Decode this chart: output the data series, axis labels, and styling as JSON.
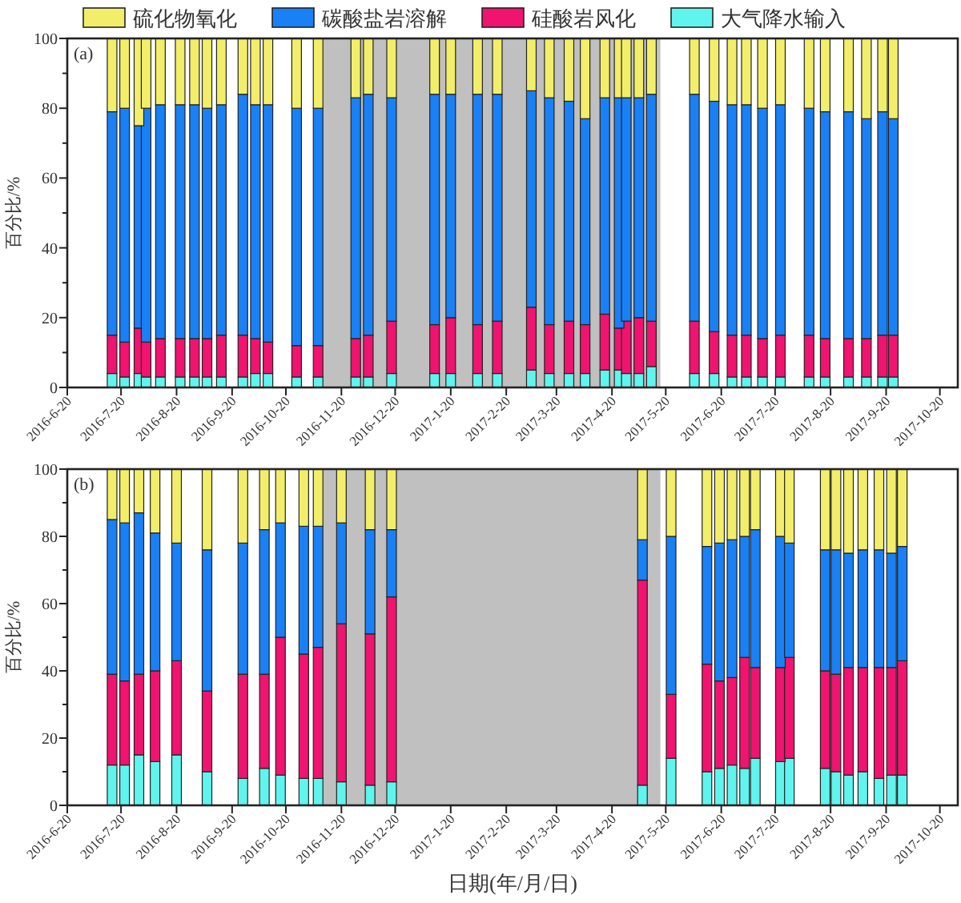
{
  "chart_data": [
    {
      "type": "bar",
      "title": "(a)",
      "ylabel": "百分比/%",
      "stacked": true,
      "legend": "top",
      "x": [
        "2016-07-15",
        "2016-07-22",
        "2016-07-30",
        "2016-08-03",
        "2016-08-11",
        "2016-08-22",
        "2016-08-30",
        "2016-09-06",
        "2016-09-14",
        "2016-09-26",
        "2016-10-03",
        "2016-10-10",
        "2016-10-26",
        "2016-11-07",
        "2016-11-28",
        "2016-12-05",
        "2016-12-18",
        "2017-01-11",
        "2017-01-20",
        "2017-02-04",
        "2017-02-15",
        "2017-03-06",
        "2017-03-16",
        "2017-03-27",
        "2017-04-05",
        "2017-04-16",
        "2017-04-24",
        "2017-04-28",
        "2017-05-05",
        "2017-05-12",
        "2017-06-05",
        "2017-06-16",
        "2017-06-26",
        "2017-07-04",
        "2017-07-13",
        "2017-07-23",
        "2017-08-08",
        "2017-08-17",
        "2017-08-30",
        "2017-09-09",
        "2017-09-18",
        "2017-09-24"
      ],
      "series": [
        {
          "name": "大气降水输入",
          "color": "#5ff5ee",
          "values": [
            4,
            3,
            4,
            3,
            3,
            3,
            3,
            3,
            3,
            3,
            4,
            4,
            3,
            3,
            3,
            3,
            4,
            4,
            4,
            4,
            4,
            5,
            4,
            4,
            4,
            5,
            5,
            4,
            4,
            6,
            4,
            4,
            3,
            3,
            3,
            3,
            3,
            3,
            3,
            3,
            3,
            3
          ]
        },
        {
          "name": "硅酸岩风化",
          "color": "#f0136f",
          "values": [
            11,
            10,
            13,
            10,
            11,
            11,
            11,
            11,
            12,
            12,
            10,
            9,
            9,
            9,
            11,
            12,
            15,
            14,
            16,
            14,
            15,
            18,
            14,
            15,
            14,
            16,
            12,
            15,
            16,
            13,
            15,
            12,
            12,
            12,
            11,
            12,
            12,
            11,
            11,
            11,
            12,
            12
          ]
        },
        {
          "name": "碳酸盐岩溶解",
          "color": "#1a80f5",
          "values": [
            64,
            67,
            58,
            67,
            67,
            67,
            67,
            66,
            66,
            69,
            67,
            68,
            68,
            68,
            69,
            69,
            64,
            66,
            64,
            66,
            65,
            62,
            65,
            63,
            59,
            62,
            66,
            64,
            63,
            65,
            65,
            66,
            66,
            66,
            66,
            66,
            65,
            65,
            65,
            63,
            64,
            62
          ]
        },
        {
          "name": "硫化物氧化",
          "color": "#f3ee6a",
          "values": [
            21,
            20,
            25,
            20,
            19,
            19,
            19,
            20,
            19,
            16,
            19,
            19,
            20,
            20,
            17,
            16,
            17,
            16,
            16,
            16,
            16,
            15,
            17,
            18,
            23,
            17,
            17,
            17,
            17,
            16,
            16,
            18,
            19,
            19,
            20,
            19,
            20,
            21,
            21,
            23,
            21,
            23
          ]
        }
      ],
      "xlim": [
        "2016-06-20",
        "2017-10-30"
      ],
      "xticks": [
        {
          "value": "2016-06-20",
          "label": "2016-6-20"
        },
        {
          "value": "2016-07-20",
          "label": "2016-7-20"
        },
        {
          "value": "2016-08-20",
          "label": "2016-8-20"
        },
        {
          "value": "2016-09-20",
          "label": "2016-9-20"
        },
        {
          "value": "2016-10-20",
          "label": "2016-10-20"
        },
        {
          "value": "2016-11-20",
          "label": "2016-11-20"
        },
        {
          "value": "2016-12-20",
          "label": "2016-12-20"
        },
        {
          "value": "2017-01-20",
          "label": "2017-1-20"
        },
        {
          "value": "2017-02-20",
          "label": "2017-2-20"
        },
        {
          "value": "2017-03-20",
          "label": "2017-3-20"
        },
        {
          "value": "2017-04-20",
          "label": "2017-4-20"
        },
        {
          "value": "2017-05-20",
          "label": "2017-5-20"
        },
        {
          "value": "2017-06-20",
          "label": "2017-6-20"
        },
        {
          "value": "2017-07-20",
          "label": "2017-7-20"
        },
        {
          "value": "2017-08-20",
          "label": "2017-8-20"
        },
        {
          "value": "2017-09-20",
          "label": "2017-9-20"
        },
        {
          "value": "2017-10-20",
          "label": "2017-10-20"
        }
      ],
      "ylim": [
        0,
        100
      ],
      "yticks": [
        0,
        20,
        40,
        60,
        80,
        100
      ],
      "bands": [
        {
          "axis": "x",
          "from": "2016-11-10",
          "to": "2017-05-17",
          "color": "#c0c0c0"
        }
      ]
    },
    {
      "type": "bar",
      "title": "(b)",
      "xlabel": "日期(年/月/日)",
      "ylabel": "百分比/%",
      "stacked": true,
      "x": [
        "2016-07-15",
        "2016-07-22",
        "2016-07-30",
        "2016-08-08",
        "2016-08-20",
        "2016-09-06",
        "2016-09-26",
        "2016-10-08",
        "2016-10-17",
        "2016-10-30",
        "2016-11-07",
        "2016-11-20",
        "2016-12-06",
        "2016-12-18",
        "2017-05-07",
        "2017-05-23",
        "2017-06-12",
        "2017-06-19",
        "2017-06-26",
        "2017-07-03",
        "2017-07-09",
        "2017-07-23",
        "2017-07-28",
        "2017-08-17",
        "2017-08-23",
        "2017-08-30",
        "2017-09-07",
        "2017-09-16",
        "2017-09-23",
        "2017-09-29"
      ],
      "series": [
        {
          "color": "#5ff5ee",
          "values": [
            12,
            12,
            15,
            13,
            15,
            10,
            8,
            11,
            9,
            8,
            8,
            7,
            6,
            7,
            6,
            14,
            10,
            11,
            12,
            11,
            14,
            13,
            14,
            11,
            10,
            9,
            10,
            8,
            9,
            9
          ]
        },
        {
          "color": "#f0136f",
          "values": [
            27,
            25,
            24,
            27,
            28,
            24,
            31,
            28,
            41,
            37,
            39,
            47,
            45,
            55,
            61,
            19,
            32,
            26,
            26,
            33,
            27,
            28,
            30,
            29,
            29,
            32,
            31,
            33,
            32,
            34
          ]
        },
        {
          "color": "#1a80f5",
          "values": [
            46,
            47,
            48,
            41,
            35,
            42,
            39,
            43,
            34,
            38,
            36,
            30,
            31,
            20,
            12,
            47,
            35,
            41,
            41,
            36,
            41,
            39,
            34,
            36,
            37,
            34,
            35,
            35,
            34,
            34
          ]
        },
        {
          "color": "#f3ee6a",
          "values": [
            15,
            16,
            13,
            19,
            22,
            24,
            22,
            18,
            16,
            17,
            17,
            16,
            18,
            18,
            21,
            20,
            23,
            22,
            21,
            20,
            18,
            20,
            22,
            24,
            24,
            25,
            24,
            24,
            25,
            23
          ]
        }
      ],
      "xlim": [
        "2016-06-20",
        "2017-10-30"
      ],
      "xticks": [
        {
          "value": "2016-06-20",
          "label": "2016-6-20"
        },
        {
          "value": "2016-07-20",
          "label": "2016-7-20"
        },
        {
          "value": "2016-08-20",
          "label": "2016-8-20"
        },
        {
          "value": "2016-09-20",
          "label": "2016-9-20"
        },
        {
          "value": "2016-10-20",
          "label": "2016-10-20"
        },
        {
          "value": "2016-11-20",
          "label": "2016-11-20"
        },
        {
          "value": "2016-12-20",
          "label": "2016-12-20"
        },
        {
          "value": "2017-01-20",
          "label": "2017-1-20"
        },
        {
          "value": "2017-02-20",
          "label": "2017-2-20"
        },
        {
          "value": "2017-03-20",
          "label": "2017-3-20"
        },
        {
          "value": "2017-04-20",
          "label": "2017-4-20"
        },
        {
          "value": "2017-05-20",
          "label": "2017-5-20"
        },
        {
          "value": "2017-06-20",
          "label": "2017-6-20"
        },
        {
          "value": "2017-07-20",
          "label": "2017-7-20"
        },
        {
          "value": "2017-08-20",
          "label": "2017-8-20"
        },
        {
          "value": "2017-09-20",
          "label": "2017-9-20"
        },
        {
          "value": "2017-10-20",
          "label": "2017-10-20"
        }
      ],
      "ylim": [
        0,
        100
      ],
      "yticks": [
        0,
        20,
        40,
        60,
        80,
        100
      ],
      "bands": [
        {
          "axis": "x",
          "from": "2016-11-10",
          "to": "2017-05-17",
          "color": "#c0c0c0"
        }
      ]
    }
  ]
}
